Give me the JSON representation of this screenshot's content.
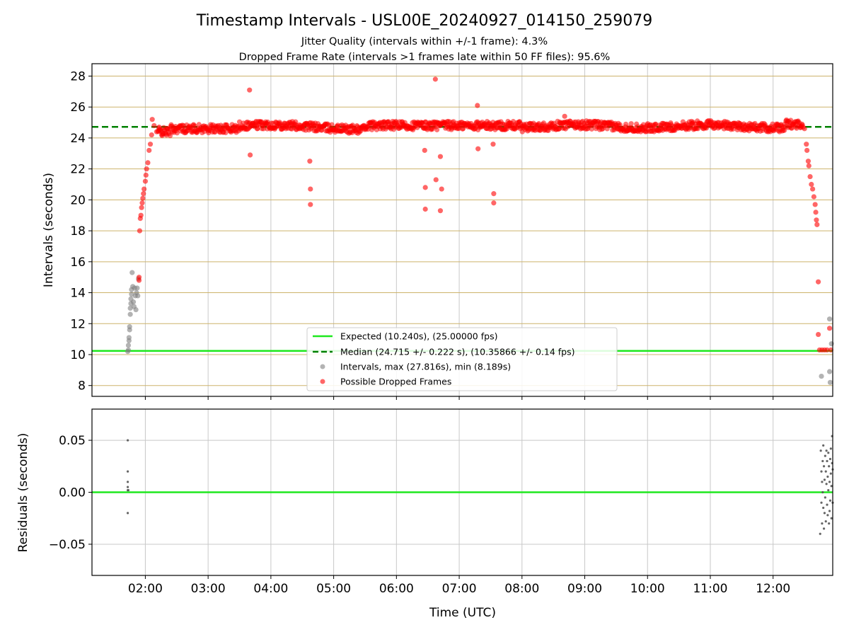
{
  "chart_data": [
    {
      "type": "scatter",
      "title": "Timestamp Intervals - USL00E_20240927_014150_259079",
      "subtitle_lines": [
        "Jitter Quality (intervals within +/-1 frame): 4.3%",
        "Dropped Frame Rate (intervals >1 frames late within 50 FF files): 95.6%"
      ],
      "ylabel": "Intervals (seconds)",
      "xlabel": "",
      "xlim": [
        1.15,
        12.95
      ],
      "ylim": [
        7.3,
        28.8
      ],
      "yticks": [
        8,
        10,
        12,
        14,
        16,
        18,
        20,
        22,
        24,
        26,
        28
      ],
      "ytick_labels": [
        "8",
        "10",
        "12",
        "14",
        "16",
        "18",
        "20",
        "22",
        "24",
        "26",
        "28"
      ],
      "xticks": [
        2,
        3,
        4,
        5,
        6,
        7,
        8,
        9,
        10,
        11,
        12
      ],
      "xtick_labels": [],
      "grid": {
        "x": true,
        "y": true
      },
      "legend_position": "bottom-center",
      "reference_lines": [
        {
          "name": "Expected (10.240s), (25.00000 fps)",
          "y": 10.24,
          "style": "solid",
          "color": "#1ee81e"
        },
        {
          "name": "Median (24.715 +/- 0.222 s), (10.35866 +/- 0.14 fps)",
          "y": 24.715,
          "style": "dashed",
          "color": "#008000"
        }
      ],
      "series": [
        {
          "name": "Intervals, max (27.816s), min (8.189s)",
          "color": "#808080",
          "points": [
            [
              1.72,
              10.2
            ],
            [
              1.73,
              10.3
            ],
            [
              1.73,
              10.6
            ],
            [
              1.74,
              10.9
            ],
            [
              1.74,
              11.1
            ],
            [
              1.75,
              11.6
            ],
            [
              1.75,
              11.8
            ],
            [
              1.76,
              12.6
            ],
            [
              1.76,
              13.0
            ],
            [
              1.77,
              13.3
            ],
            [
              1.77,
              13.6
            ],
            [
              1.78,
              13.9
            ],
            [
              1.78,
              14.2
            ],
            [
              1.79,
              15.3
            ],
            [
              1.8,
              14.4
            ],
            [
              1.81,
              13.4
            ],
            [
              1.82,
              13.1
            ],
            [
              1.83,
              14.3
            ],
            [
              1.84,
              13.8
            ],
            [
              1.85,
              12.9
            ],
            [
              1.86,
              14.0
            ],
            [
              1.87,
              14.3
            ],
            [
              1.88,
              13.8
            ],
            [
              1.89,
              14.9
            ],
            [
              12.77,
              8.6
            ],
            [
              12.9,
              8.9
            ],
            [
              12.9,
              12.3
            ],
            [
              12.91,
              8.2
            ],
            [
              12.93,
              10.7
            ]
          ]
        },
        {
          "name": "Possible Dropped Frames",
          "color": "#ff0000",
          "points": [
            [
              1.9,
              14.8
            ],
            [
              1.9,
              15.0
            ],
            [
              1.91,
              18.0
            ],
            [
              1.92,
              18.8
            ],
            [
              1.93,
              19.0
            ],
            [
              1.94,
              19.5
            ],
            [
              1.95,
              19.8
            ],
            [
              1.96,
              20.1
            ],
            [
              1.97,
              20.4
            ],
            [
              1.98,
              20.7
            ],
            [
              2.0,
              21.2
            ],
            [
              2.01,
              21.6
            ],
            [
              2.02,
              22.0
            ],
            [
              2.04,
              22.4
            ],
            [
              2.06,
              23.2
            ],
            [
              2.08,
              23.6
            ],
            [
              2.1,
              24.2
            ],
            [
              2.11,
              25.2
            ],
            [
              2.14,
              24.8
            ],
            [
              2.18,
              24.4
            ],
            [
              2.22,
              24.7
            ],
            [
              3.66,
              27.1
            ],
            [
              3.67,
              22.9
            ],
            [
              4.62,
              22.5
            ],
            [
              4.63,
              20.7
            ],
            [
              4.63,
              19.7
            ],
            [
              6.45,
              23.2
            ],
            [
              6.46,
              20.8
            ],
            [
              6.46,
              19.4
            ],
            [
              6.62,
              27.8
            ],
            [
              6.63,
              21.3
            ],
            [
              6.7,
              22.8
            ],
            [
              6.7,
              19.3
            ],
            [
              6.72,
              20.7
            ],
            [
              7.29,
              26.1
            ],
            [
              7.3,
              23.3
            ],
            [
              7.54,
              23.6
            ],
            [
              7.55,
              20.4
            ],
            [
              7.55,
              19.8
            ],
            [
              8.68,
              25.4
            ],
            [
              12.5,
              24.6
            ],
            [
              12.53,
              23.6
            ],
            [
              12.54,
              23.2
            ],
            [
              12.56,
              22.5
            ],
            [
              12.57,
              22.2
            ],
            [
              12.59,
              21.5
            ],
            [
              12.61,
              21.0
            ],
            [
              12.63,
              20.7
            ],
            [
              12.65,
              20.2
            ],
            [
              12.67,
              19.7
            ],
            [
              12.68,
              19.2
            ],
            [
              12.69,
              18.7
            ],
            [
              12.7,
              18.4
            ],
            [
              12.72,
              14.7
            ],
            [
              12.72,
              11.3
            ],
            [
              12.74,
              10.3
            ],
            [
              12.78,
              10.3
            ],
            [
              12.82,
              10.3
            ],
            [
              12.86,
              10.3
            ],
            [
              12.9,
              11.7
            ],
            [
              12.92,
              10.3
            ]
          ]
        }
      ]
    },
    {
      "type": "scatter",
      "title": "",
      "ylabel": "Residuals (seconds)",
      "xlabel": "Time (UTC)",
      "xlim": [
        1.15,
        12.95
      ],
      "ylim": [
        -0.08,
        0.08
      ],
      "yticks": [
        -0.05,
        0,
        0.05
      ],
      "ytick_labels": [
        "−0.05",
        "0.00",
        "0.05"
      ],
      "xticks": [
        2,
        3,
        4,
        5,
        6,
        7,
        8,
        9,
        10,
        11,
        12
      ],
      "xtick_labels": [
        "02:00",
        "03:00",
        "04:00",
        "05:00",
        "06:00",
        "07:00",
        "08:00",
        "09:00",
        "10:00",
        "11:00",
        "12:00"
      ],
      "grid": {
        "x": true,
        "y": true
      },
      "reference_lines": [
        {
          "name": "",
          "y": 0,
          "style": "solid",
          "color": "#1ee81e"
        }
      ],
      "series": [
        {
          "name": "",
          "color": "#555555",
          "points": [
            [
              1.72,
              0.05
            ],
            [
              1.72,
              0.02
            ],
            [
              1.72,
              0.01
            ],
            [
              1.72,
              0.005
            ],
            [
              1.72,
              0.002
            ],
            [
              1.72,
              -0.02
            ],
            [
              1.73,
              0.002
            ],
            [
              12.75,
              -0.04
            ],
            [
              12.76,
              0.04
            ],
            [
              12.77,
              0.02
            ],
            [
              12.77,
              -0.01
            ],
            [
              12.78,
              0.01
            ],
            [
              12.78,
              -0.03
            ],
            [
              12.79,
              0.03
            ],
            [
              12.79,
              0.0
            ],
            [
              12.8,
              0.045
            ],
            [
              12.8,
              -0.015
            ],
            [
              12.81,
              0.025
            ],
            [
              12.81,
              -0.035
            ],
            [
              12.82,
              0.012
            ],
            [
              12.82,
              -0.02
            ],
            [
              12.83,
              0.035
            ],
            [
              12.83,
              -0.005
            ],
            [
              12.84,
              0.02
            ],
            [
              12.84,
              -0.028
            ],
            [
              12.85,
              0.04
            ],
            [
              12.85,
              0.008
            ],
            [
              12.86,
              -0.012
            ],
            [
              12.86,
              0.03
            ],
            [
              12.87,
              0.015
            ],
            [
              12.87,
              -0.022
            ],
            [
              12.88,
              0.038
            ],
            [
              12.88,
              0.002
            ],
            [
              12.89,
              -0.03
            ],
            [
              12.89,
              0.025
            ],
            [
              12.9,
              0.01
            ],
            [
              12.9,
              -0.018
            ],
            [
              12.91,
              0.032
            ],
            [
              12.91,
              -0.008
            ],
            [
              12.92,
              0.042
            ],
            [
              12.92,
              0.018
            ],
            [
              12.93,
              -0.025
            ],
            [
              12.93,
              0.006
            ],
            [
              12.94,
              0.054
            ],
            [
              12.94,
              0.028
            ],
            [
              12.95,
              -0.01
            ],
            [
              12.95,
              0.022
            ]
          ]
        }
      ]
    }
  ],
  "legend": {
    "entries": [
      {
        "label": "Expected (10.240s), (25.00000 fps)",
        "kind": "solid-line",
        "color": "#1ee81e"
      },
      {
        "label": "Median (24.715 +/- 0.222 s), (10.35866 +/- 0.14 fps)",
        "kind": "dashed-line",
        "color": "#008000"
      },
      {
        "label": "Intervals, max (27.816s), min (8.189s)",
        "kind": "marker",
        "color": "#808080"
      },
      {
        "label": "Possible Dropped Frames",
        "kind": "marker",
        "color": "#ff0000"
      }
    ]
  },
  "colors": {
    "hgrid_top": "#cdb36b",
    "vgrid": "#c8c8c8",
    "hgrid_bottom": "#c8c8c8",
    "expected_line": "#1ee81e",
    "median_line": "#008000",
    "dropped": "#ff0000",
    "interval": "#808080",
    "residual": "#555555"
  }
}
